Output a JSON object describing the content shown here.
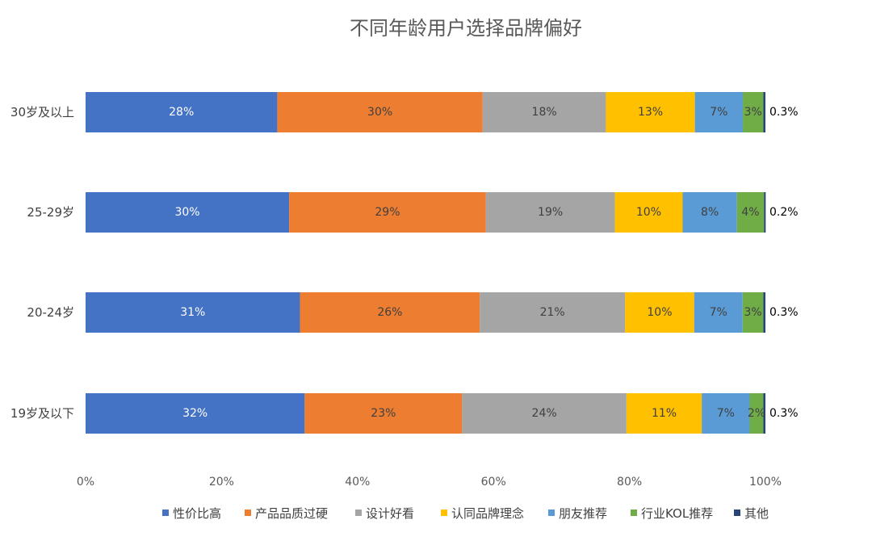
{
  "chart_data": {
    "type": "bar",
    "orientation": "horizontal",
    "stacked": true,
    "title": "不同年龄用户选择品牌偏好",
    "categories": [
      "30岁及以上",
      "25-29岁",
      "20-24岁",
      "19岁及以下"
    ],
    "series": [
      {
        "name": "性价比高",
        "color": "#4472C4",
        "values": [
          28,
          30,
          31,
          32
        ],
        "labels": [
          "28%",
          "30%",
          "31%",
          "32%"
        ]
      },
      {
        "name": "产品品质过硬",
        "color": "#ED7D31",
        "values": [
          30,
          29,
          26,
          23
        ],
        "labels": [
          "30%",
          "29%",
          "26%",
          "23%"
        ]
      },
      {
        "name": "设计好看",
        "color": "#A5A5A5",
        "values": [
          18,
          19,
          21,
          24
        ],
        "labels": [
          "18%",
          "19%",
          "21%",
          "24%"
        ]
      },
      {
        "name": "认同品牌理念",
        "color": "#FFC000",
        "values": [
          13,
          10,
          10,
          11
        ],
        "labels": [
          "13%",
          "10%",
          "10%",
          "11%"
        ]
      },
      {
        "name": "朋友推荐",
        "color": "#5B9BD5",
        "values": [
          7,
          8,
          7,
          7
        ],
        "labels": [
          "7%",
          "8%",
          "7%",
          "7%"
        ]
      },
      {
        "name": "行业KOL推荐",
        "color": "#70AD47",
        "values": [
          3,
          4,
          3,
          2
        ],
        "labels": [
          "3%",
          "4%",
          "3%",
          "2%"
        ]
      },
      {
        "name": "其他",
        "color": "#264478",
        "values": [
          0.3,
          0.2,
          0.3,
          0.3
        ],
        "labels": [
          "0.3%",
          "0.2%",
          "0.3%",
          "0.3%"
        ]
      }
    ],
    "xaxis": {
      "ticks": [
        "0%",
        "20%",
        "40%",
        "60%",
        "80%",
        "100%"
      ],
      "range": [
        0,
        100
      ]
    },
    "grid": false,
    "legend_position": "bottom"
  }
}
